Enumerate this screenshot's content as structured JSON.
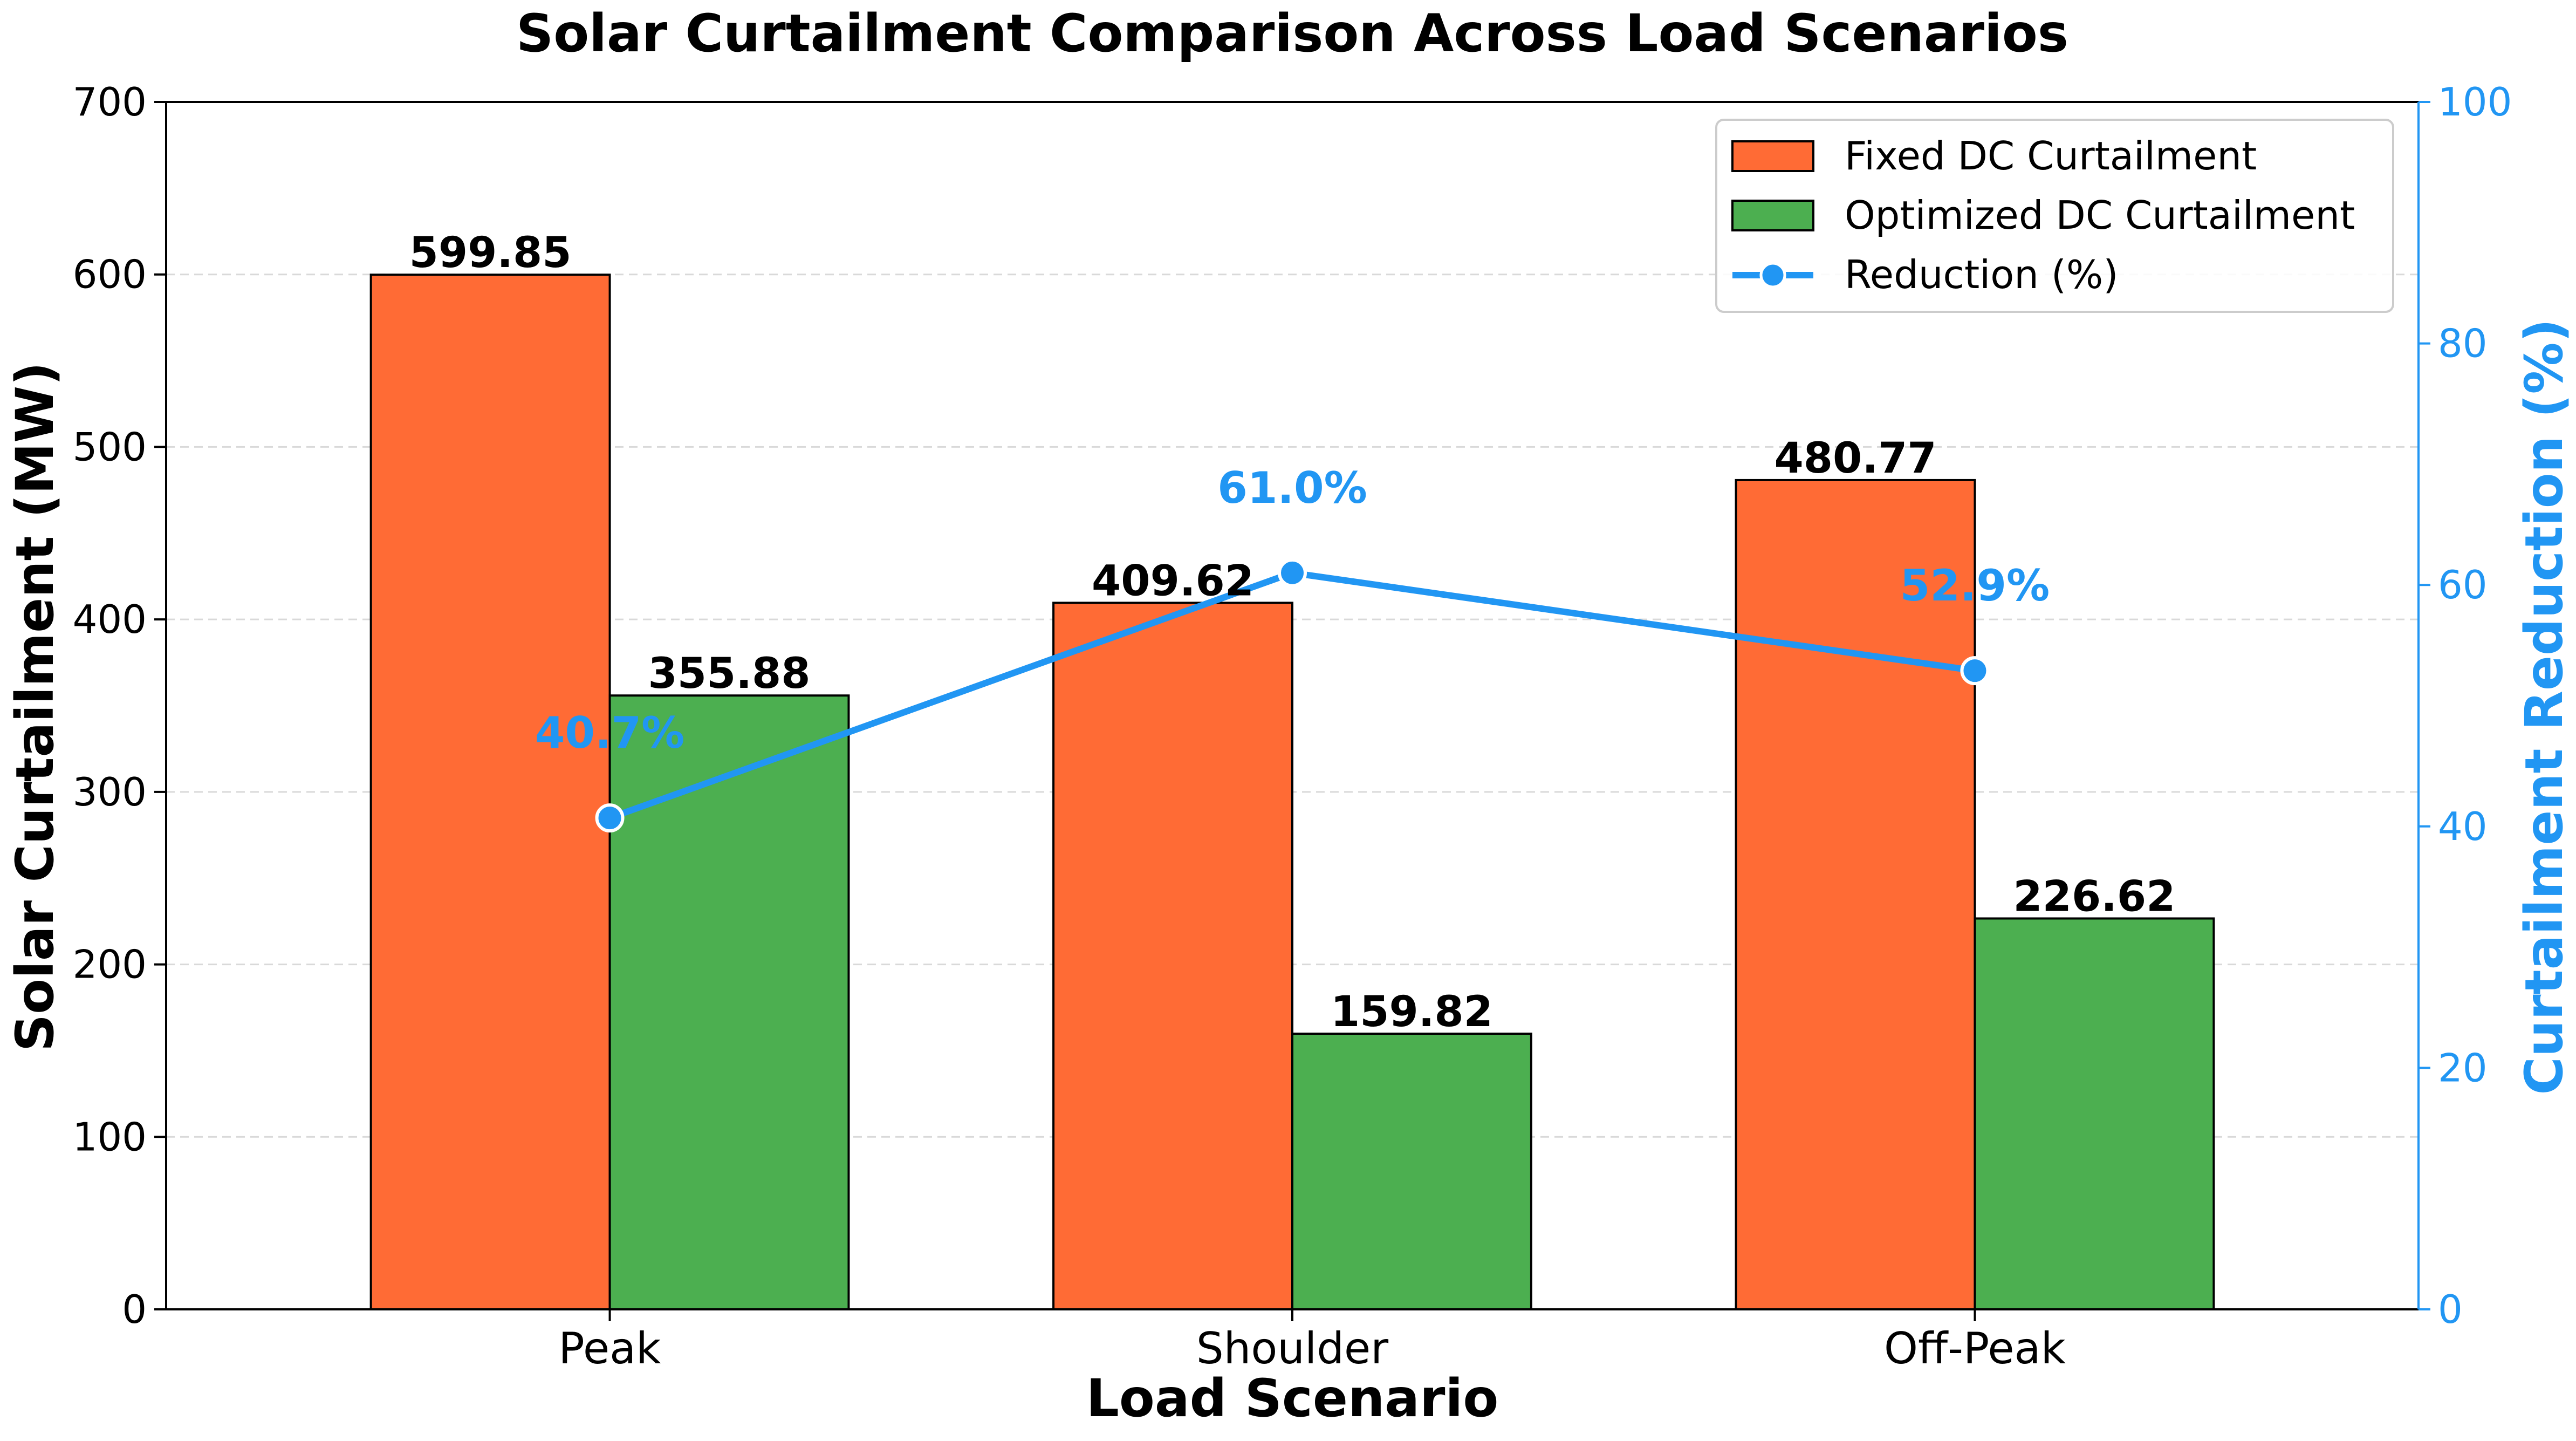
{
  "chart_data": {
    "type": "bar",
    "title": "Solar Curtailment Comparison Across Load Scenarios",
    "xlabel": "Load Scenario",
    "ylabel": "Solar Curtailment (MW)",
    "y2label": "Curtailment Reduction (%)",
    "categories": [
      "Peak",
      "Shoulder",
      "Off-Peak"
    ],
    "ylim": [
      0,
      700
    ],
    "y2lim": [
      0,
      100
    ],
    "yticks": [
      0,
      100,
      200,
      300,
      400,
      500,
      600,
      700
    ],
    "y2ticks": [
      0,
      20,
      40,
      60,
      80,
      100
    ],
    "grid": true,
    "legend_position": "top-right",
    "series": [
      {
        "name": "Fixed DC Curtailment",
        "kind": "bar",
        "axis": "left",
        "color": "#FF6B35",
        "values": [
          599.85,
          409.62,
          480.77
        ],
        "labels": [
          "599.85",
          "409.62",
          "480.77"
        ]
      },
      {
        "name": "Optimized DC Curtailment",
        "kind": "bar",
        "axis": "left",
        "color": "#4CAF50",
        "values": [
          355.88,
          159.82,
          226.62
        ],
        "labels": [
          "355.88",
          "159.82",
          "226.62"
        ]
      },
      {
        "name": "Reduction (%)",
        "kind": "line",
        "axis": "right",
        "color": "#2196F3",
        "values": [
          40.7,
          61.0,
          52.9
        ],
        "labels": [
          "40.7%",
          "61.0%",
          "52.9%"
        ]
      }
    ]
  }
}
